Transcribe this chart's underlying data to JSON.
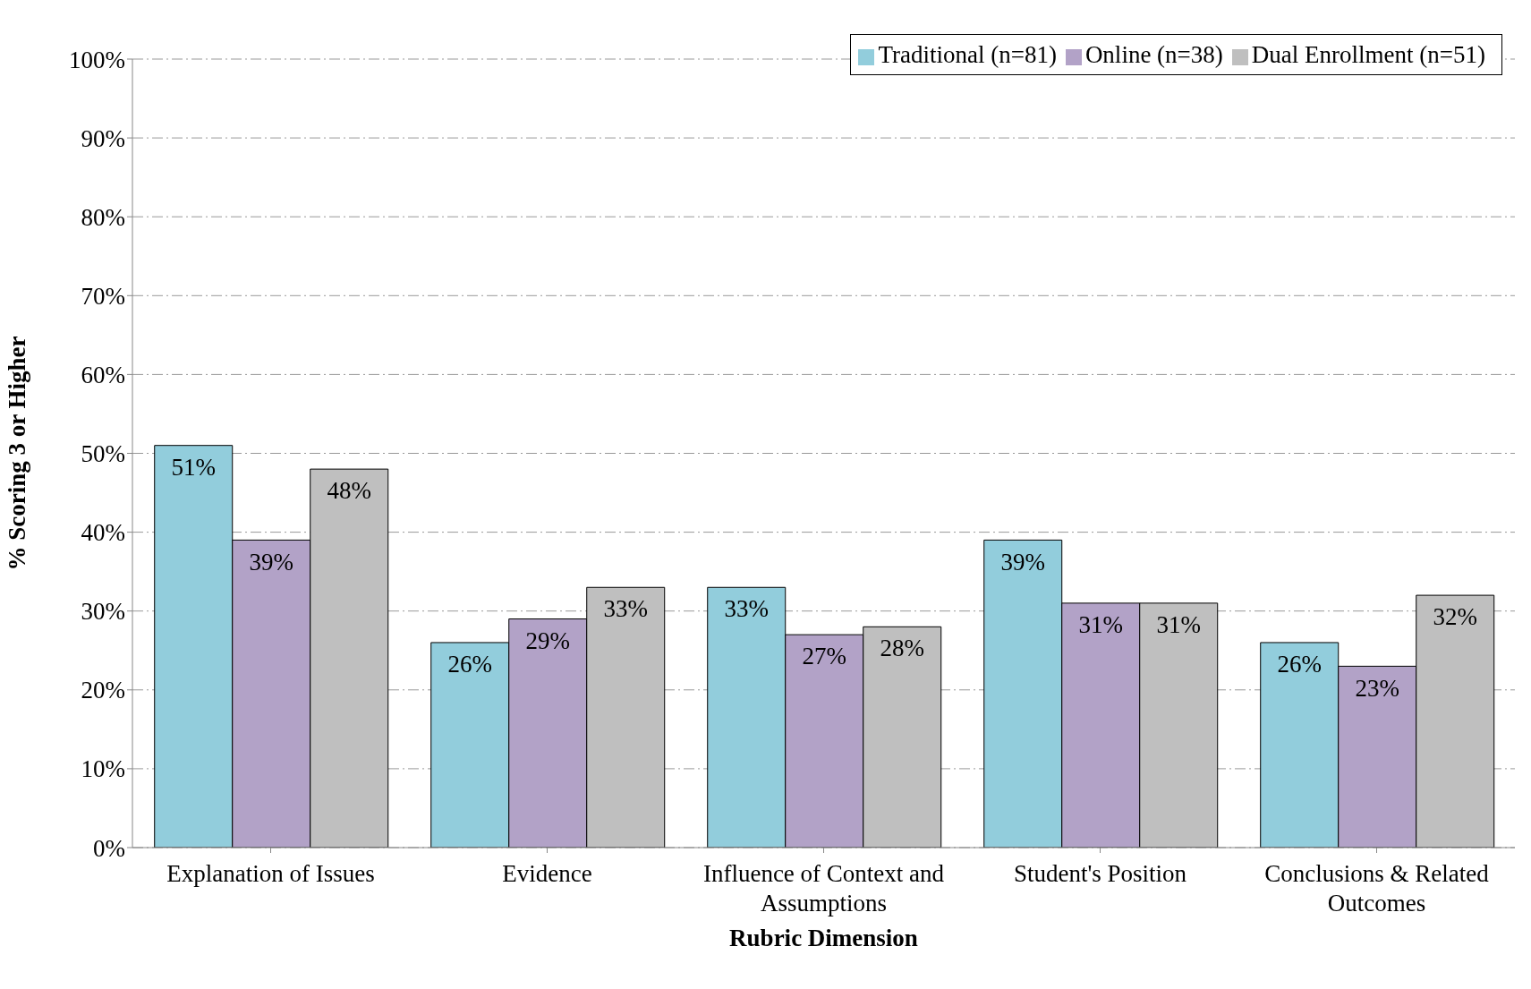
{
  "chart_data": {
    "type": "bar",
    "xlabel": "Rubric Dimension",
    "ylabel": "% Scoring 3 or Higher",
    "categories": [
      "Explanation of Issues",
      "Evidence",
      "Influence of Context and Assumptions",
      "Student's Position",
      "Conclusions & Related Outcomes"
    ],
    "series": [
      {
        "name": "Traditional (n=81)",
        "color": "#92cddc",
        "values": [
          51,
          26,
          33,
          39,
          26
        ],
        "value_labels": [
          "51%",
          "26%",
          "33%",
          "39%",
          "26%"
        ]
      },
      {
        "name": "Online (n=38)",
        "color": "#b2a2c7",
        "values": [
          39,
          29,
          27,
          31,
          23
        ],
        "value_labels": [
          "39%",
          "29%",
          "27%",
          "31%",
          "23%"
        ]
      },
      {
        "name": "Dual Enrollment (n=51)",
        "color": "#bfbfbf",
        "values": [
          48,
          33,
          28,
          31,
          32
        ],
        "value_labels": [
          "48%",
          "33%",
          "28%",
          "31%",
          "32%"
        ]
      }
    ],
    "ylim": [
      0,
      100
    ],
    "yticks": [
      {
        "value": 0,
        "label": "0%"
      },
      {
        "value": 10,
        "label": "10%"
      },
      {
        "value": 20,
        "label": "20%"
      },
      {
        "value": 30,
        "label": "30%"
      },
      {
        "value": 40,
        "label": "40%"
      },
      {
        "value": 50,
        "label": "50%"
      },
      {
        "value": 60,
        "label": "60%"
      },
      {
        "value": 70,
        "label": "70%"
      },
      {
        "value": 80,
        "label": "80%"
      },
      {
        "value": 90,
        "label": "90%"
      },
      {
        "value": 100,
        "label": "100%"
      }
    ],
    "grid": "y",
    "legend": "top right"
  }
}
